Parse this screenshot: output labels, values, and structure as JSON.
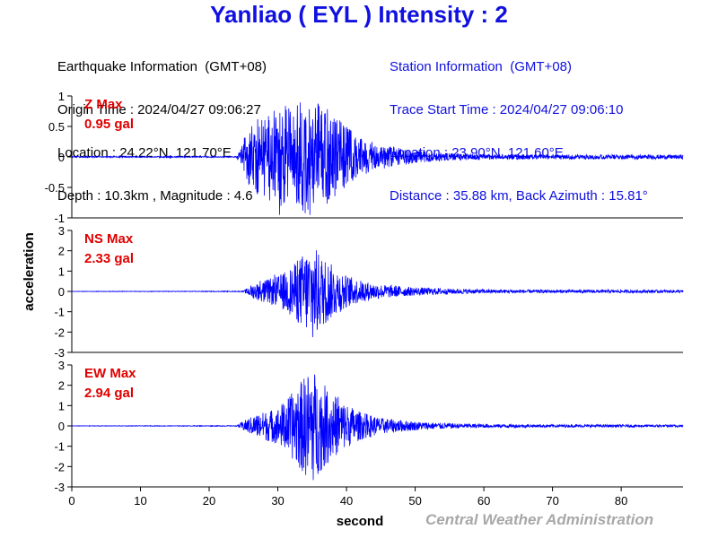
{
  "title": "Yanliao ( EYL ) Intensity : 2",
  "earthquake_info": {
    "heading": "Earthquake Information  (GMT+08)",
    "origin_time": "Origin Time : 2024/04/27 09:06:27",
    "location": "Location : 24.22°N, 121.70°E",
    "depth_magnitude": "Depth : 10.3km , Magnitude : 4.6"
  },
  "station_info": {
    "heading": "Station Information  (GMT+08)",
    "trace_start": "Trace Start Time : 2024/04/27 09:06:10",
    "location": "Location : 23.90°N, 121.60°E",
    "distance": "Distance : 35.88 km, Back Azimuth : 15.81°"
  },
  "credit": "Central Weather Administration",
  "colors": {
    "title": "#1010e0",
    "trace": "#0000ff",
    "label": "#e00000",
    "credit": "#a8a8a8"
  },
  "chart_data": {
    "type": "line",
    "xlabel": "second",
    "ylabel": "acceleration",
    "xlim": [
      0,
      89
    ],
    "xticks": [
      0,
      10,
      20,
      30,
      40,
      50,
      60,
      70,
      80
    ],
    "grid": false,
    "panels": [
      {
        "component": "Z",
        "label": "Z Max",
        "max_text": "0.95 gal",
        "peak": 0.95,
        "ylim": [
          -1,
          1
        ],
        "yticks": [
          1,
          0.5,
          0,
          -0.5,
          -1
        ],
        "ytick_labels": [
          "1",
          "0.5",
          "0",
          "-0.5",
          "-1"
        ],
        "envelope": [
          [
            0,
            0.01
          ],
          [
            24,
            0.01
          ],
          [
            25,
            0.25
          ],
          [
            26,
            0.55
          ],
          [
            28,
            0.68
          ],
          [
            30,
            0.8
          ],
          [
            32,
            0.88
          ],
          [
            34,
            0.95
          ],
          [
            36,
            0.9
          ],
          [
            38,
            0.72
          ],
          [
            40,
            0.5
          ],
          [
            42,
            0.32
          ],
          [
            45,
            0.2
          ],
          [
            50,
            0.1
          ],
          [
            55,
            0.06
          ],
          [
            60,
            0.045
          ],
          [
            70,
            0.04
          ],
          [
            89,
            0.035
          ]
        ]
      },
      {
        "component": "NS",
        "label": "NS Max",
        "max_text": "2.33 gal",
        "peak": 2.33,
        "ylim": [
          -3,
          3
        ],
        "yticks": [
          3,
          2,
          1,
          0,
          -1,
          -2,
          -3
        ],
        "ytick_labels": [
          "3",
          "2",
          "1",
          "0",
          "-1",
          "-2",
          "-3"
        ],
        "envelope": [
          [
            0,
            0.01
          ],
          [
            25,
            0.02
          ],
          [
            26,
            0.3
          ],
          [
            28,
            0.55
          ],
          [
            30,
            0.75
          ],
          [
            32,
            1.2
          ],
          [
            34,
            2.0
          ],
          [
            35,
            2.33
          ],
          [
            36,
            1.9
          ],
          [
            38,
            1.3
          ],
          [
            40,
            0.8
          ],
          [
            42,
            0.55
          ],
          [
            45,
            0.35
          ],
          [
            50,
            0.2
          ],
          [
            55,
            0.14
          ],
          [
            60,
            0.1
          ],
          [
            70,
            0.08
          ],
          [
            89,
            0.07
          ]
        ]
      },
      {
        "component": "EW",
        "label": "EW Max",
        "max_text": "2.94 gal",
        "peak": 2.94,
        "ylim": [
          -3,
          3
        ],
        "yticks": [
          3,
          2,
          1,
          0,
          -1,
          -2,
          -3
        ],
        "ytick_labels": [
          "3",
          "2",
          "1",
          "0",
          "-1",
          "-2",
          "-3"
        ],
        "envelope": [
          [
            0,
            0.01
          ],
          [
            24,
            0.02
          ],
          [
            25,
            0.25
          ],
          [
            27,
            0.6
          ],
          [
            30,
            0.9
          ],
          [
            32,
            1.6
          ],
          [
            34,
            2.5
          ],
          [
            35,
            2.94
          ],
          [
            36,
            2.3
          ],
          [
            38,
            1.6
          ],
          [
            40,
            1.1
          ],
          [
            42,
            0.7
          ],
          [
            45,
            0.4
          ],
          [
            50,
            0.22
          ],
          [
            55,
            0.13
          ],
          [
            60,
            0.09
          ],
          [
            70,
            0.07
          ],
          [
            89,
            0.06
          ]
        ]
      }
    ]
  }
}
